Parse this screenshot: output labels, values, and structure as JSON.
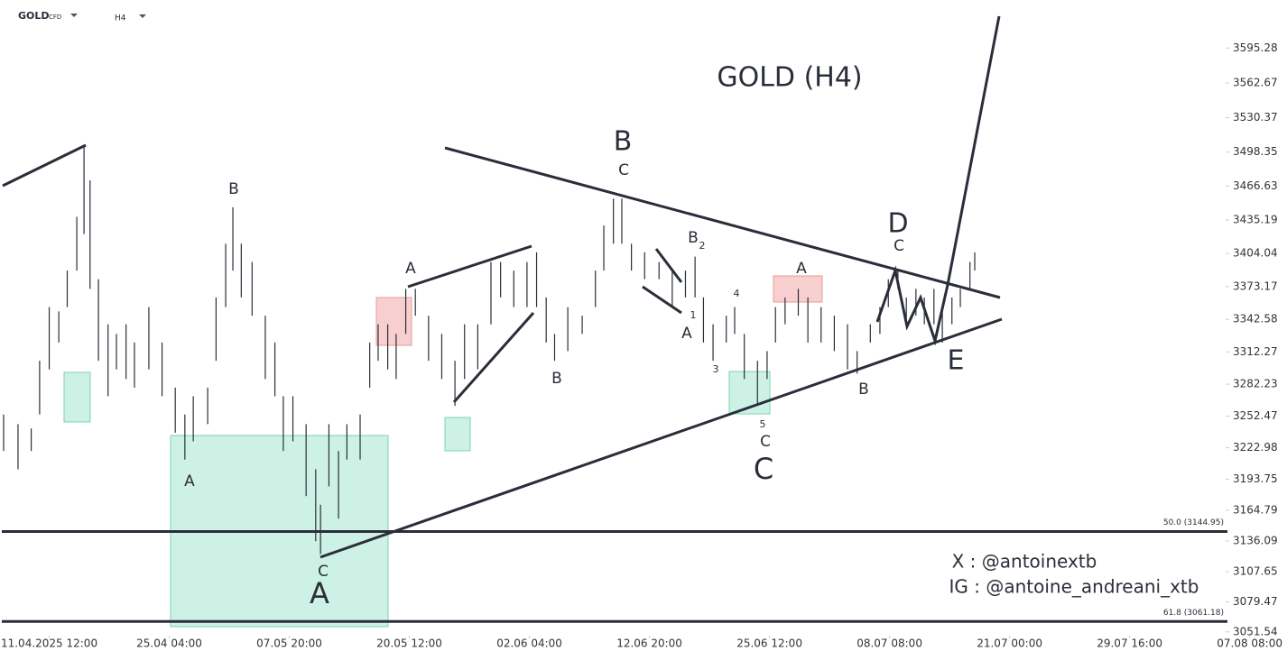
{
  "header": {
    "symbol": "GOLD",
    "symbol_type": "CFD",
    "timeframe": "H4"
  },
  "chart_data": {
    "type": "ohlc",
    "color": "#2a2e39",
    "x": [
      -0.38,
      -0.26,
      -0.15,
      -0.08,
      0,
      0.08,
      0.15,
      0.23,
      0.29,
      0.34,
      0.41,
      0.49,
      0.56,
      0.64,
      0.71,
      0.83,
      0.94,
      1.05,
      1.13,
      1.2,
      1.32,
      1.39,
      1.47,
      1.53,
      1.6,
      1.69,
      1.8,
      1.88,
      1.95,
      2.03,
      2.14,
      2.22,
      2.26,
      2.33,
      2.41,
      2.48,
      2.59,
      2.67,
      2.74,
      2.82,
      2.89,
      2.97,
      3.05,
      3.16,
      3.27,
      3.38,
      3.46,
      3.57,
      3.68,
      3.76,
      3.87,
      3.98,
      4.06,
      4.14,
      4.21,
      4.32,
      4.44,
      4.55,
      4.62,
      4.7,
      4.77,
      4.85,
      4.96,
      5.08,
      5.19,
      5.3,
      5.38,
      5.45,
      5.53,
      5.64,
      5.71,
      5.79,
      5.9,
      5.98,
      6.05,
      6.13,
      6.24,
      6.32,
      6.43,
      6.54,
      6.65,
      6.73,
      6.84,
      6.92,
      6.99,
      7.07,
      7.14,
      7.22,
      7.29,
      7.37,
      7.44,
      7.52,
      7.59,
      7.67,
      7.71
    ],
    "high": [
      3254,
      3245,
      3241,
      3304,
      3354,
      3350,
      3388,
      3438,
      3505,
      3472,
      3380,
      3338,
      3329,
      3338,
      3321,
      3354,
      3321,
      3279,
      3254,
      3271,
      3279,
      3363,
      3413,
      3447,
      3413,
      3396,
      3346,
      3321,
      3271,
      3271,
      3245,
      3203,
      3170,
      3245,
      3220,
      3245,
      3254,
      3321,
      3338,
      3338,
      3329,
      3371,
      3371,
      3346,
      3329,
      3304,
      3338,
      3338,
      3396,
      3396,
      3388,
      3396,
      3405,
      3363,
      3329,
      3354,
      3346,
      3388,
      3430,
      3455,
      3455,
      3413,
      3405,
      3396,
      3388,
      3388,
      3401,
      3363,
      3338,
      3346,
      3354,
      3329,
      3304,
      3313,
      3354,
      3363,
      3371,
      3363,
      3354,
      3346,
      3338,
      3313,
      3338,
      3354,
      3380,
      3388,
      3363,
      3371,
      3363,
      3371,
      3354,
      3363,
      3371,
      3396,
      3405
    ],
    "low": [
      3220,
      3203,
      3220,
      3254,
      3296,
      3321,
      3354,
      3388,
      3422,
      3371,
      3304,
      3271,
      3296,
      3287,
      3279,
      3296,
      3271,
      3237,
      3212,
      3229,
      3245,
      3304,
      3354,
      3388,
      3363,
      3346,
      3287,
      3271,
      3220,
      3229,
      3178,
      3136,
      3124,
      3187,
      3157,
      3212,
      3212,
      3279,
      3304,
      3296,
      3287,
      3329,
      3346,
      3304,
      3287,
      3262,
      3287,
      3296,
      3338,
      3363,
      3354,
      3354,
      3354,
      3321,
      3304,
      3313,
      3329,
      3354,
      3388,
      3413,
      3413,
      3388,
      3380,
      3380,
      3354,
      3363,
      3363,
      3321,
      3304,
      3321,
      3329,
      3287,
      3262,
      3287,
      3321,
      3338,
      3346,
      3321,
      3321,
      3313,
      3296,
      3292,
      3321,
      3329,
      3354,
      3371,
      3338,
      3346,
      3338,
      3338,
      3321,
      3338,
      3354,
      3371,
      3388
    ],
    "xlim": [
      -0.41,
      9.83
    ],
    "ylim": [
      3048,
      3640
    ],
    "xticks": [
      {
        "value": 0,
        "label": "11.04.2025  12:00"
      },
      {
        "value": 1,
        "label": "25.04  04:00"
      },
      {
        "value": 2,
        "label": "07.05  20:00"
      },
      {
        "value": 3,
        "label": "20.05  12:00"
      },
      {
        "value": 4,
        "label": "02.06  04:00"
      },
      {
        "value": 5,
        "label": "12.06  20:00"
      },
      {
        "value": 6,
        "label": "25.06  12:00"
      },
      {
        "value": 7,
        "label": "08.07  08:00"
      },
      {
        "value": 8,
        "label": "21.07  00:00"
      },
      {
        "value": 9,
        "label": "29.07  16:00"
      },
      {
        "value": 10,
        "label": "07.08  08:00"
      }
    ],
    "yticks": [
      3595.28,
      3562.67,
      3530.37,
      3498.35,
      3466.63,
      3435.19,
      3404.04,
      3373.17,
      3342.58,
      3312.27,
      3282.23,
      3252.47,
      3222.98,
      3193.75,
      3164.79,
      3136.09,
      3107.65,
      3079.47,
      3051.54
    ],
    "levels": [
      {
        "value": 3144.95,
        "label": "50.0 (3144.95)"
      },
      {
        "value": 3061.18,
        "label": "61.8 (3061.18)"
      }
    ],
    "annotations": [
      "GOLD (H4)",
      "B",
      "C",
      "B",
      "A",
      "A",
      "B",
      "B",
      "2",
      "1",
      "A",
      "3",
      "4",
      "5",
      "C",
      "C",
      "A",
      "D",
      "C",
      "B",
      "E",
      "C",
      "A",
      "X : @antoinextb",
      "IG : @antoine_andreani_xtb"
    ]
  }
}
